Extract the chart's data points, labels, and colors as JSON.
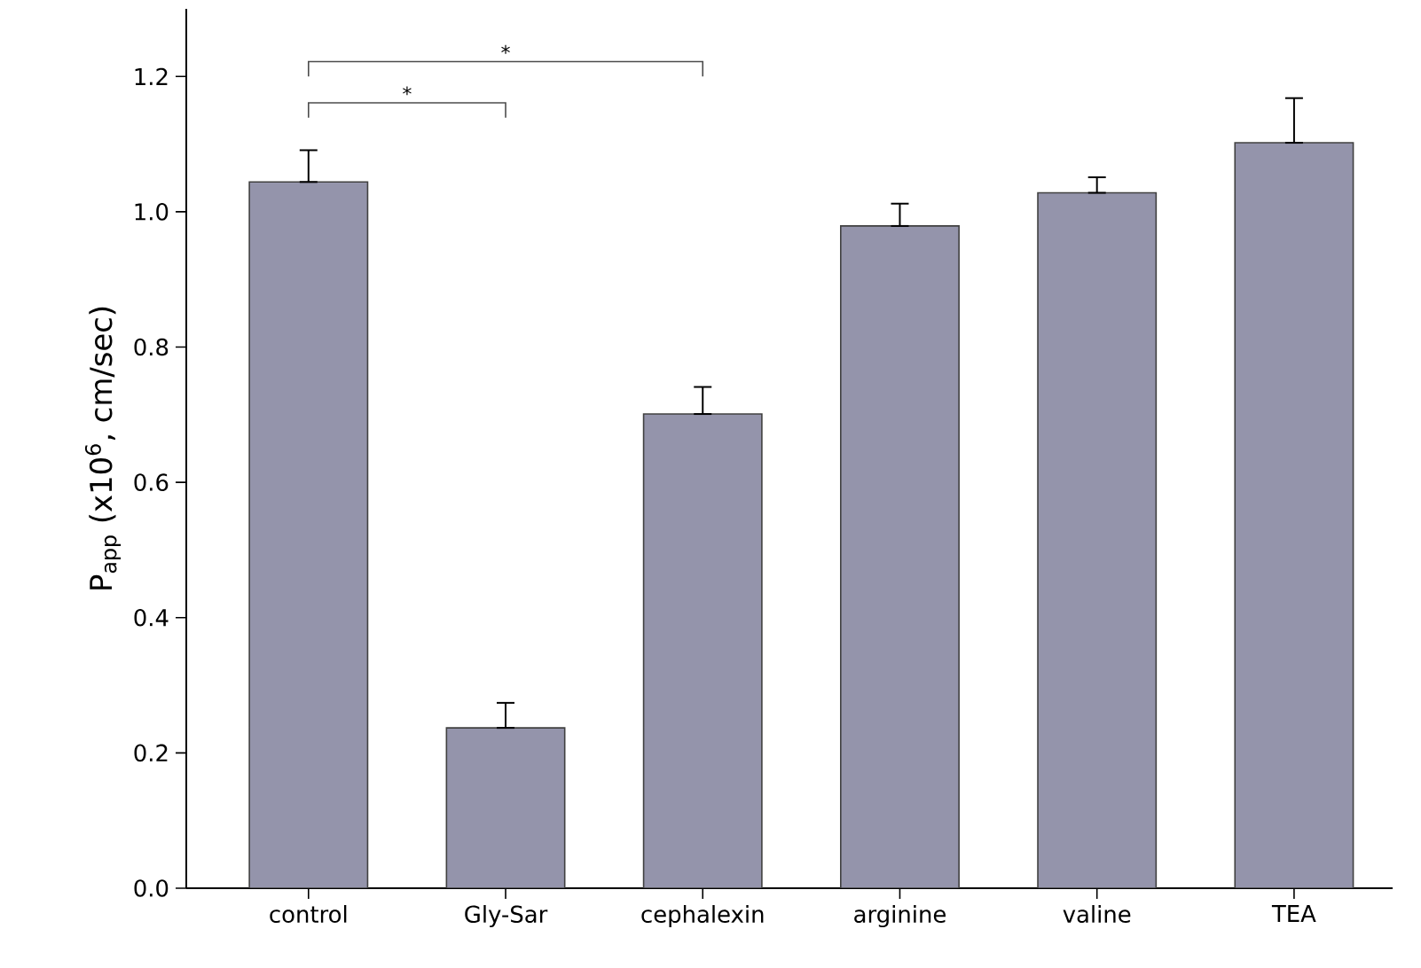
{
  "chart_data": {
    "type": "bar",
    "ylabel": "P$_{app}$ (x10$^{6}$, cm/sec)",
    "categories": [
      "control",
      "Gly-Sar",
      "cephalexin",
      "arginine",
      "valine",
      "TEA"
    ],
    "values": [
      1.044,
      0.237,
      0.701,
      0.979,
      1.028,
      1.102
    ],
    "errors": [
      [
        1.044,
        1.091
      ],
      [
        0.237,
        0.274
      ],
      [
        0.701,
        0.741
      ],
      [
        0.979,
        1.012
      ],
      [
        1.028,
        1.051
      ],
      [
        1.102,
        1.168
      ]
    ],
    "color": "#9494ab",
    "ylim": [
      0,
      1.3
    ],
    "yticks": [
      {
        "value": 0,
        "label": "0.0"
      },
      {
        "value": 0.2,
        "label": "0.2"
      },
      {
        "value": 0.4,
        "label": "0.4"
      },
      {
        "value": 0.6,
        "label": "0.6"
      },
      {
        "value": 0.8,
        "label": "0.8"
      },
      {
        "value": 1.0,
        "label": "1.0"
      },
      {
        "value": 1.2,
        "label": "1.2"
      }
    ],
    "grid": false,
    "annotations": [
      "*",
      "*"
    ]
  }
}
